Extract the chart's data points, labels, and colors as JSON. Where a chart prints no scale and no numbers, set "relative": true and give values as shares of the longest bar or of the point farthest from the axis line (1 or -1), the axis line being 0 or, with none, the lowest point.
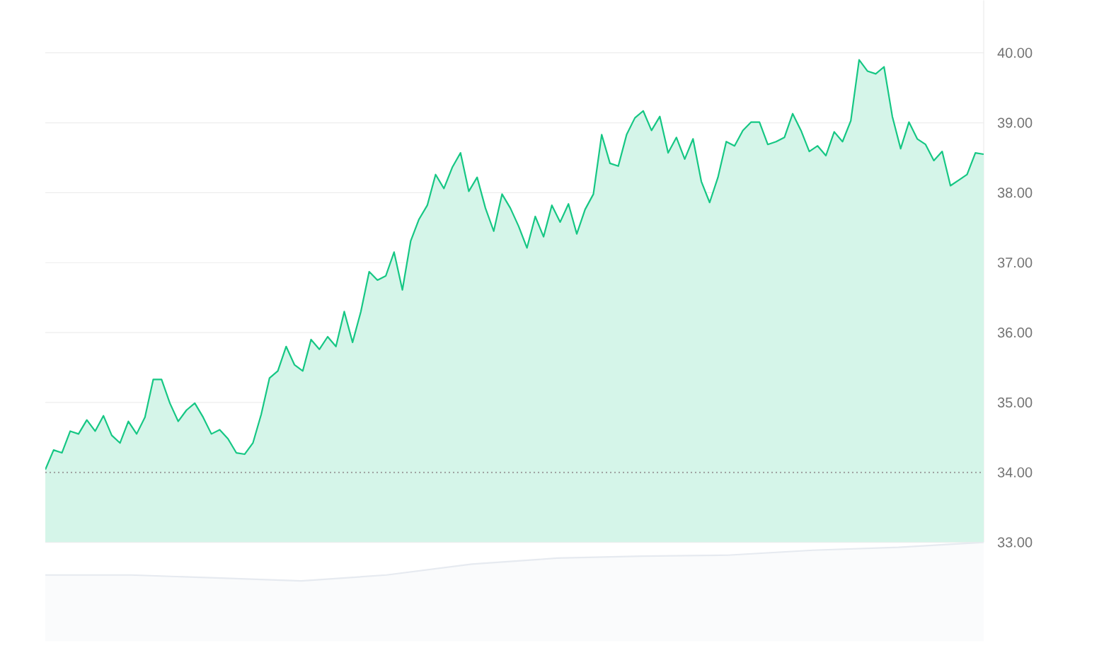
{
  "chart_data": [
    {
      "type": "area",
      "categories": [
        null,
        null,
        null,
        null,
        null,
        null,
        null,
        null,
        null,
        null,
        null,
        null,
        null,
        null,
        null,
        null,
        null,
        null,
        null,
        null,
        null,
        null,
        null,
        null,
        null,
        null,
        null,
        null,
        null,
        null,
        null,
        null,
        null,
        null,
        null,
        null,
        null,
        null,
        null,
        null,
        null,
        null,
        null,
        null,
        null,
        null,
        null,
        null,
        null,
        null,
        null,
        null,
        null,
        null,
        null,
        null,
        null,
        null,
        null,
        null,
        null,
        null,
        null,
        null,
        null,
        null,
        null,
        null,
        null,
        null,
        null,
        null,
        null,
        null,
        null,
        null,
        null,
        null,
        null,
        null,
        null,
        null,
        null,
        null,
        null,
        null,
        null,
        null,
        null,
        null,
        null,
        null,
        null,
        null,
        null,
        null,
        null,
        null,
        null,
        null,
        null,
        null,
        null,
        null,
        null,
        null,
        null,
        null,
        null,
        null,
        null,
        null,
        null,
        null
      ],
      "series": [
        {
          "color": "#16c784",
          "values": [
            34.04,
            34.32,
            34.28,
            34.59,
            34.55,
            34.75,
            34.59,
            34.81,
            34.53,
            34.42,
            34.73,
            34.55,
            34.79,
            35.33,
            35.33,
            34.99,
            34.73,
            34.89,
            34.99,
            34.79,
            34.55,
            34.61,
            34.48,
            34.28,
            34.26,
            34.42,
            34.83,
            35.35,
            35.45,
            35.8,
            35.54,
            35.45,
            35.9,
            35.76,
            35.94,
            35.8,
            36.3,
            35.86,
            36.3,
            36.87,
            36.75,
            36.81,
            37.15,
            36.61,
            37.31,
            37.62,
            37.82,
            38.26,
            38.06,
            38.36,
            38.57,
            38.02,
            38.22,
            37.78,
            37.45,
            37.98,
            37.78,
            37.52,
            37.21,
            37.66,
            37.37,
            37.82,
            37.58,
            37.84,
            37.41,
            37.76,
            37.98,
            38.83,
            38.42,
            38.38,
            38.83,
            39.07,
            39.17,
            38.89,
            39.09,
            38.57,
            38.79,
            38.48,
            38.77,
            38.16,
            37.86,
            38.22,
            38.73,
            38.67,
            38.89,
            39.01,
            39.01,
            38.69,
            38.73,
            38.79,
            39.13,
            38.89,
            38.59,
            38.67,
            38.53,
            38.87,
            38.73,
            39.03,
            39.9,
            39.74,
            39.7,
            39.8,
            39.09,
            38.63,
            39.01,
            38.77,
            38.69,
            38.46,
            38.59,
            38.1,
            38.18,
            38.26,
            38.57,
            38.55
          ]
        }
      ],
      "ylim": [
        33,
        40.75
      ],
      "yticks": [
        {
          "value": 33,
          "label": "33.00"
        },
        {
          "value": 34,
          "label": "34.00"
        },
        {
          "value": 35,
          "label": "35.00"
        },
        {
          "value": 36,
          "label": "36.00"
        },
        {
          "value": 37,
          "label": "37.00"
        },
        {
          "value": 38,
          "label": "38.00"
        },
        {
          "value": 39,
          "label": "39.00"
        },
        {
          "value": 40,
          "label": "40.00"
        }
      ],
      "grid": "y",
      "marker": "none",
      "tick_labels": "y",
      "ref_lines": [
        {
          "axis": "y",
          "value": 34,
          "color": "#9a9a9a",
          "line_style": "dotted"
        }
      ]
    },
    {
      "type": "area",
      "relative": true,
      "categories": [
        null,
        null,
        null,
        null,
        null,
        null,
        null,
        null,
        null,
        null,
        null,
        null
      ],
      "series": [
        {
          "color": "#e6eaf0",
          "values": [
            0.67,
            0.67,
            0.64,
            0.61,
            0.67,
            0.78,
            0.84,
            0.86,
            0.87,
            0.92,
            0.95,
            1.0
          ]
        }
      ],
      "tick_labels": false
    }
  ]
}
